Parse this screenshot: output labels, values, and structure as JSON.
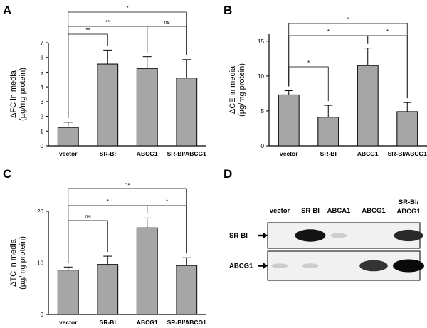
{
  "colors": {
    "bar": "#a6a6a6",
    "axis": "#000000",
    "blot_bg": "#f1f1f1"
  },
  "panel_labels": [
    "A",
    "B",
    "C",
    "D"
  ],
  "chart_data": [
    {
      "panel": "A",
      "type": "bar",
      "categories": [
        "vector",
        "SR-BI",
        "ABCG1",
        "SR-BI/ABCG1"
      ],
      "values": [
        1.25,
        5.55,
        5.25,
        4.6
      ],
      "errors": [
        0.35,
        0.95,
        0.8,
        1.25
      ],
      "ylabel_lines": [
        "ΔFC in media",
        "(µg/mg protein)"
      ],
      "ylim": [
        0,
        7
      ],
      "yticks": [
        "0",
        "1",
        "2",
        "3",
        "4",
        "5",
        "6",
        "7"
      ],
      "grid": false,
      "significance": [
        {
          "from": "vector",
          "to": "SR-BI",
          "label": "**"
        },
        {
          "from": "vector",
          "to": "ABCG1",
          "label": "**"
        },
        {
          "from": "ABCG1",
          "to": "SR-BI/ABCG1",
          "label": "ns"
        },
        {
          "from": "vector",
          "to": "SR-BI/ABCG1",
          "label": "*"
        }
      ]
    },
    {
      "panel": "B",
      "type": "bar",
      "categories": [
        "vector",
        "SR-BI",
        "ABCG1",
        "SR-BI/ABCG1"
      ],
      "values": [
        7.3,
        4.1,
        11.5,
        4.9
      ],
      "errors": [
        0.6,
        1.7,
        2.5,
        1.3
      ],
      "ylabel_lines": [
        "ΔCE in media",
        "(µg/mg protein)"
      ],
      "ylim": [
        0,
        16
      ],
      "yticks": [
        "0",
        "5",
        "10",
        "15"
      ],
      "grid": false,
      "significance": [
        {
          "from": "vector",
          "to": "SR-BI",
          "label": "*"
        },
        {
          "from": "ABCG1",
          "to": "SR-BI/ABCG1",
          "label": "*"
        },
        {
          "from": "vector",
          "to": "ABCG1",
          "label": "*"
        },
        {
          "from": "vector",
          "to": "SR-BI/ABCG1",
          "label": "*"
        }
      ]
    },
    {
      "panel": "C",
      "type": "bar",
      "categories": [
        "vector",
        "SR-BI",
        "ABCG1",
        "SR-BI/ABCG1"
      ],
      "values": [
        8.6,
        9.7,
        16.8,
        9.5
      ],
      "errors": [
        0.6,
        1.6,
        1.9,
        1.5
      ],
      "ylabel_lines": [
        "ΔTC in media",
        "(µg/mg protein)"
      ],
      "ylim": [
        0,
        20
      ],
      "yticks": [
        "0",
        "10",
        "20"
      ],
      "grid": false,
      "significance": [
        {
          "from": "vector",
          "to": "SR-BI",
          "label": "ns"
        },
        {
          "from": "ABCG1",
          "to": "SR-BI/ABCG1",
          "label": "*"
        },
        {
          "from": "vector",
          "to": "ABCG1",
          "label": "*"
        },
        {
          "from": "vector",
          "to": "SR-BI/ABCG1",
          "label": "ns"
        }
      ]
    }
  ],
  "blot": {
    "panel": "D",
    "lanes": [
      "vector",
      "SR-BI",
      "ABCA1",
      "ABCG1",
      "SR-BI/ ABCG1"
    ],
    "rows": [
      {
        "label": "SR-BI",
        "intensities": [
          0,
          0.95,
          0.05,
          0,
          0.85
        ]
      },
      {
        "label": "ABCG1",
        "intensities": [
          0.05,
          0.05,
          0,
          0.8,
          1.0
        ]
      }
    ]
  }
}
